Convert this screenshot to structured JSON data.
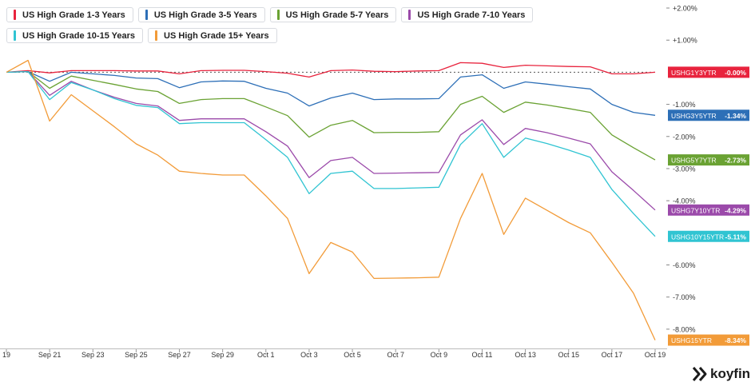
{
  "chart_data": {
    "type": "line",
    "x": [
      "Sep 19",
      "Sep 20",
      "Sep 21",
      "Sep 22",
      "Sep 23",
      "Sep 24",
      "Sep 25",
      "Sep 26",
      "Sep 27",
      "Sep 28",
      "Sep 29",
      "Sep 30",
      "Oct 1",
      "Oct 2",
      "Oct 3",
      "Oct 4",
      "Oct 5",
      "Oct 6",
      "Oct 7",
      "Oct 8",
      "Oct 9",
      "Oct 10",
      "Oct 11",
      "Oct 12",
      "Oct 13",
      "Oct 14",
      "Oct 15",
      "Oct 16",
      "Oct 17",
      "Oct 18",
      "Oct 19"
    ],
    "x_ticks": [
      "19",
      "Sep 21",
      "Sep 23",
      "Sep 25",
      "Sep 27",
      "Sep 29",
      "Oct 1",
      "Oct 3",
      "Oct 5",
      "Oct 7",
      "Oct 9",
      "Oct 11",
      "Oct 13",
      "Oct 15",
      "Oct 17",
      "Oct 19"
    ],
    "y_ticks": [
      "+2.00%",
      "+1.00%",
      "-1.00%",
      "-2.00%",
      "-3.00%",
      "-4.00%",
      "-6.00%",
      "-7.00%",
      "-8.00%"
    ],
    "ylim": [
      -8.6,
      2.2
    ],
    "grid": false,
    "legend_position": "top-left",
    "baseline": 0,
    "series": [
      {
        "name": "US High Grade 1-3 Years",
        "color": "#e8233d",
        "tag": "USHG1Y3YTR",
        "last_label": "-0.00%",
        "values": [
          0,
          0.05,
          -0.02,
          0.05,
          0.05,
          0.05,
          0.04,
          0.04,
          -0.05,
          0.05,
          0.06,
          0.06,
          0.02,
          -0.03,
          -0.15,
          0.05,
          0.07,
          0.03,
          0.02,
          0.04,
          0.05,
          0.3,
          0.28,
          0.15,
          0.22,
          0.2,
          0.18,
          0.17,
          -0.05,
          -0.05,
          0
        ]
      },
      {
        "name": "US High Grade 3-5 Years",
        "color": "#2d6fb7",
        "tag": "USHG3Y5YTR",
        "last_label": "-1.34%",
        "values": [
          0,
          0.02,
          -0.28,
          0,
          -0.05,
          -0.1,
          -0.18,
          -0.2,
          -0.48,
          -0.3,
          -0.27,
          -0.28,
          -0.5,
          -0.65,
          -1.05,
          -0.8,
          -0.65,
          -0.85,
          -0.83,
          -0.83,
          -0.82,
          -0.15,
          -0.08,
          -0.5,
          -0.3,
          -0.37,
          -0.45,
          -0.52,
          -1.0,
          -1.25,
          -1.34
        ]
      },
      {
        "name": "US High Grade 5-7 Years",
        "color": "#6aa233",
        "tag": "USHG5Y7YTR",
        "last_label": "-2.73%",
        "values": [
          0,
          0.02,
          -0.5,
          -0.12,
          -0.25,
          -0.38,
          -0.52,
          -0.6,
          -0.97,
          -0.85,
          -0.82,
          -0.82,
          -1.08,
          -1.35,
          -2.02,
          -1.65,
          -1.5,
          -1.88,
          -1.87,
          -1.87,
          -1.85,
          -1.0,
          -0.75,
          -1.25,
          -0.93,
          -1.02,
          -1.13,
          -1.25,
          -1.95,
          -2.35,
          -2.73
        ]
      },
      {
        "name": "US High Grade 7-10 Years",
        "color": "#9b4aaa",
        "tag": "USHG7Y10YTR",
        "last_label": "-4.29%",
        "values": [
          0,
          0.02,
          -0.72,
          -0.28,
          -0.55,
          -0.78,
          -0.97,
          -1.05,
          -1.5,
          -1.45,
          -1.45,
          -1.45,
          -1.85,
          -2.3,
          -3.28,
          -2.75,
          -2.65,
          -3.15,
          -3.14,
          -3.13,
          -3.12,
          -1.95,
          -1.48,
          -2.25,
          -1.75,
          -1.88,
          -2.05,
          -2.23,
          -3.1,
          -3.68,
          -4.29
        ]
      },
      {
        "name": "US High Grade 10-15 Years",
        "color": "#30c4d2",
        "tag": "USHG10Y15YTR",
        "last_label": "-5.11%",
        "values": [
          0,
          0.02,
          -0.85,
          -0.32,
          -0.55,
          -0.82,
          -1.03,
          -1.1,
          -1.6,
          -1.57,
          -1.57,
          -1.57,
          -2.1,
          -2.65,
          -3.78,
          -3.15,
          -3.08,
          -3.62,
          -3.62,
          -3.6,
          -3.58,
          -2.25,
          -1.6,
          -2.65,
          -2.05,
          -2.22,
          -2.42,
          -2.65,
          -3.65,
          -4.4,
          -5.11
        ]
      },
      {
        "name": "US High Grade 15+ Years",
        "color": "#f29b38",
        "tag": "USHG15YTR",
        "last_label": "-8.34%",
        "values": [
          0,
          0.37,
          -1.52,
          -0.7,
          -1.2,
          -1.7,
          -2.23,
          -2.58,
          -3.08,
          -3.15,
          -3.2,
          -3.2,
          -3.85,
          -4.55,
          -6.27,
          -5.3,
          -5.6,
          -6.42,
          -6.41,
          -6.4,
          -6.38,
          -4.55,
          -3.15,
          -5.05,
          -3.92,
          -4.3,
          -4.68,
          -5.0,
          -5.92,
          -6.88,
          -8.34
        ]
      }
    ]
  },
  "brand": {
    "name": "koyfin"
  }
}
